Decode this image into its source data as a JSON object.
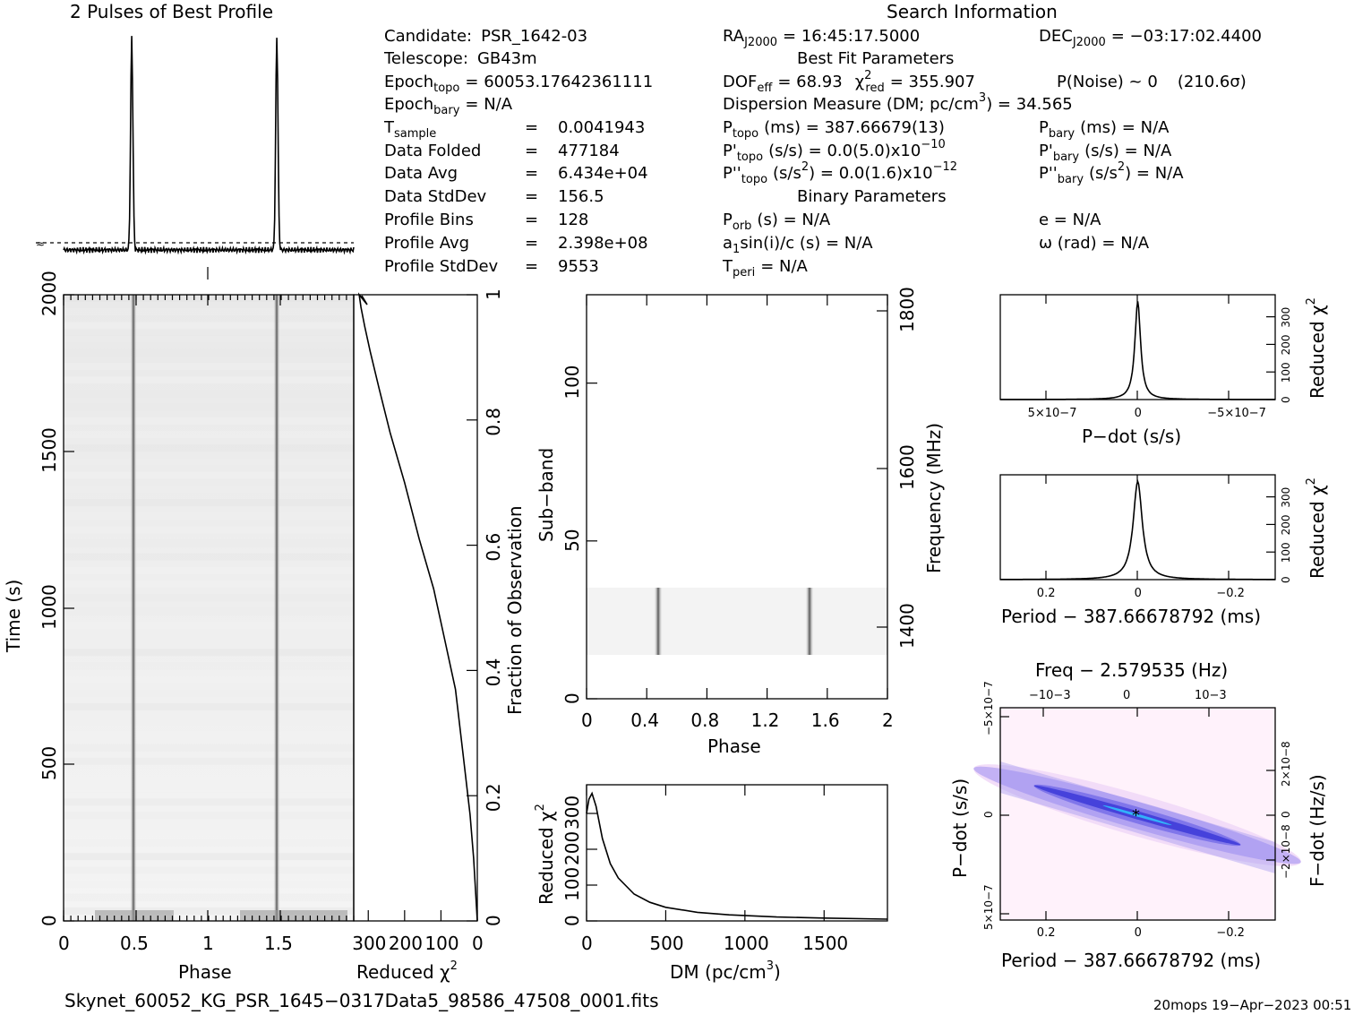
{
  "header": {
    "profile_title": "2 Pulses of Best Profile",
    "search_title": "Search Information"
  },
  "info_left": [
    {
      "label": "Candidate:",
      "value": "PSR_1642-03"
    },
    {
      "label": "Telescope:",
      "value": "GB43m"
    },
    {
      "label": "Epoch",
      "sub": "topo",
      "value": "= 60053.17642361111"
    },
    {
      "label": "Epoch",
      "sub": "bary",
      "value": "= N/A"
    },
    {
      "label": "T",
      "sub": "sample",
      "value": "0.0041943"
    },
    {
      "label": "Data Folded",
      "value": "477184"
    },
    {
      "label": "Data Avg",
      "value": "6.434e+04"
    },
    {
      "label": "Data StdDev",
      "value": "156.5"
    },
    {
      "label": "Profile Bins",
      "value": "128"
    },
    {
      "label": "Profile Avg",
      "value": "2.398e+08"
    },
    {
      "label": "Profile StdDev",
      "value": "9553"
    }
  ],
  "info_mid": {
    "ra": "RA",
    "ra_sub": "J2000",
    "ra_val": "= 16:45:17.5000",
    "dec": "DEC",
    "dec_sub": "J2000",
    "dec_val": "= −03:17:02.4400",
    "best_fit": "Best Fit Parameters",
    "dof_val": "= 68.93",
    "chi_val": "= 355.907",
    "pnoise": "P(Noise) ~ 0",
    "sigma": "(210.6σ)",
    "dm_line": "Dispersion Measure (DM; pc/cm",
    "dm_val": ") = 34.565",
    "ptopo_val": "(ms) =  387.66679(13)",
    "pbary_val": "(ms) = N/A",
    "pdtopo_val": "(s/s) = 0.0(5.0)x10",
    "pdtopo_exp": "−10",
    "pdbary_val": "(s/s) = N/A",
    "pddtopo_val": ") = 0.0(1.6)x10",
    "pddtopo_exp": "−12",
    "pddbary_val": ") = N/A",
    "binary": "Binary Parameters",
    "porb": "(s) = N/A",
    "e": "e = N/A",
    "a1": "a",
    "a1_val": "sin(i)/c (s) = N/A",
    "omega": "ω (rad) = N/A",
    "tperi": "= N/A"
  },
  "footer": {
    "filename": "Skynet_60052_KG_PSR_1645−0317Data5_98586_47508_0001.fits",
    "stamp": "20mops 19−Apr−2023 00:51"
  },
  "chart_data": [
    {
      "type": "line",
      "title": "2 Pulses of Best Profile",
      "x_range": [
        0,
        2
      ],
      "peaks_phase": [
        0.47,
        1.47
      ],
      "note": "pulse profile"
    },
    {
      "type": "heatmap",
      "xlabel": "Phase",
      "ylabel": "Time (s)",
      "x_ticks": [
        "0",
        "0.5",
        "1",
        "1.5"
      ],
      "y_ticks": [
        "0",
        "500",
        "1000",
        "1500",
        "2000"
      ],
      "xlim": [
        0,
        2
      ],
      "ylim": [
        0,
        2000
      ]
    },
    {
      "type": "line",
      "xlabel": "Reduced χ",
      "ylabel": "Fraction of Observation",
      "x_ticks": [
        "300",
        "200",
        "100",
        "0"
      ],
      "y_ticks": [
        "0",
        "0.2",
        "0.4",
        "0.6",
        "0.8",
        "1"
      ],
      "x": [
        0,
        10,
        20,
        40,
        60,
        90,
        120,
        160,
        200,
        240,
        270,
        295,
        310,
        320,
        325
      ],
      "y": [
        0.0,
        0.1,
        0.17,
        0.27,
        0.37,
        0.45,
        0.53,
        0.61,
        0.7,
        0.78,
        0.85,
        0.91,
        0.95,
        0.98,
        1.0
      ]
    },
    {
      "type": "heatmap",
      "xlabel": "Phase",
      "ylabel": "Sub-band",
      "y2label": "Frequency (MHz)",
      "x_ticks": [
        "0",
        "0.4",
        "0.8",
        "1.2",
        "1.6",
        "2"
      ],
      "y_ticks": [
        "0",
        "50",
        "100"
      ],
      "y2_ticks": [
        "1400",
        "1600",
        "1800"
      ],
      "active_subbands": [
        14,
        35
      ],
      "peaks_phase": [
        0.47,
        1.47
      ]
    },
    {
      "type": "line",
      "xlabel": "DM (pc/cm",
      "ylabel": "Reduced χ",
      "x_ticks": [
        "0",
        "500",
        "1000",
        "1500"
      ],
      "y_ticks": [
        "0",
        "100",
        "200",
        "300"
      ],
      "xlim": [
        0,
        1900
      ],
      "ylim": [
        0,
        380
      ],
      "x": [
        0,
        15,
        34.565,
        60,
        100,
        150,
        200,
        300,
        400,
        500,
        700,
        900,
        1200,
        1500,
        1900
      ],
      "y": [
        300,
        340,
        356,
        320,
        230,
        160,
        120,
        75,
        52,
        38,
        24,
        17,
        11,
        8,
        5
      ]
    },
    {
      "type": "line",
      "xlabel": "P−dot (s/s)",
      "ylabel": "Reduced χ",
      "x_ticks": [
        "5×10−7",
        "0",
        "−5×10−7"
      ],
      "y_ticks": [
        "0",
        "100",
        "200",
        "300"
      ],
      "peak_x": 0,
      "peak_y": 356
    },
    {
      "type": "line",
      "xlabel": "Period − 387.66678792 (ms)",
      "ylabel": "Reduced χ",
      "x_ticks": [
        "0.2",
        "0",
        "−0.2"
      ],
      "y_ticks": [
        "0",
        "100",
        "200",
        "300"
      ],
      "peak_x": 0,
      "peak_y": 356
    },
    {
      "type": "heatmap",
      "title": "Freq − 2.579535 (Hz)",
      "xlabel": "Period − 387.66678792 (ms)",
      "ylabel": "P−dot (s/s)",
      "y2label": "F−dot (Hz/s)",
      "x_ticks": [
        "0.2",
        "0",
        "−0.2"
      ],
      "top_ticks": [
        "−10−3",
        "0",
        "10−3"
      ],
      "y_ticks": [
        "5×10−7",
        "0",
        "−5×10−7"
      ],
      "y2_ticks": [
        "−2×10−8",
        "0",
        "2×10−8"
      ]
    }
  ]
}
